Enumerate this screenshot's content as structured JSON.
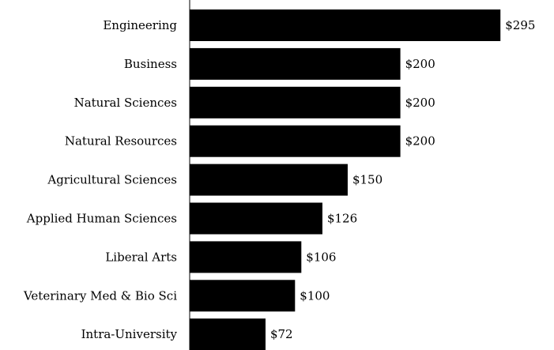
{
  "chart_data": {
    "type": "bar",
    "orientation": "horizontal",
    "categories": [
      "Engineering",
      "Business",
      "Natural Sciences",
      "Natural Resources",
      "Agricultural Sciences",
      "Applied Human Sciences",
      "Liberal Arts",
      "Veterinary Med & Bio Sci",
      "Intra-University"
    ],
    "values": [
      295,
      200,
      200,
      200,
      150,
      126,
      106,
      100,
      72
    ],
    "value_labels": [
      "$295",
      "$200",
      "$200",
      "$200",
      "$150",
      "$126",
      "$106",
      "$100",
      "$72"
    ],
    "title": "",
    "xlabel": "",
    "ylabel": "",
    "xlim": [
      0,
      300
    ],
    "grid": false,
    "legend": "none",
    "bar_color": "#000000"
  }
}
